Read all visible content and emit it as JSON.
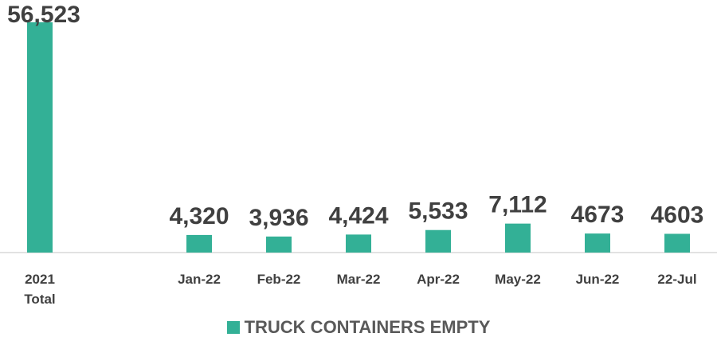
{
  "chart_data": {
    "type": "bar",
    "categories": [
      "2021 Total",
      null,
      "Jan-22",
      "Feb-22",
      "Mar-22",
      "Apr-22",
      "May-22",
      "Jun-22",
      "22-Jul"
    ],
    "values": [
      56523,
      null,
      4320,
      3936,
      4424,
      5533,
      7112,
      4673,
      4603
    ],
    "value_labels": [
      "56,523",
      null,
      "4,320",
      "3,936",
      "4,424",
      "5,533",
      "7,112",
      "4673",
      "4603"
    ],
    "series_name": "TRUCK CONTAINERS EMPTY",
    "color": "#33b096"
  }
}
